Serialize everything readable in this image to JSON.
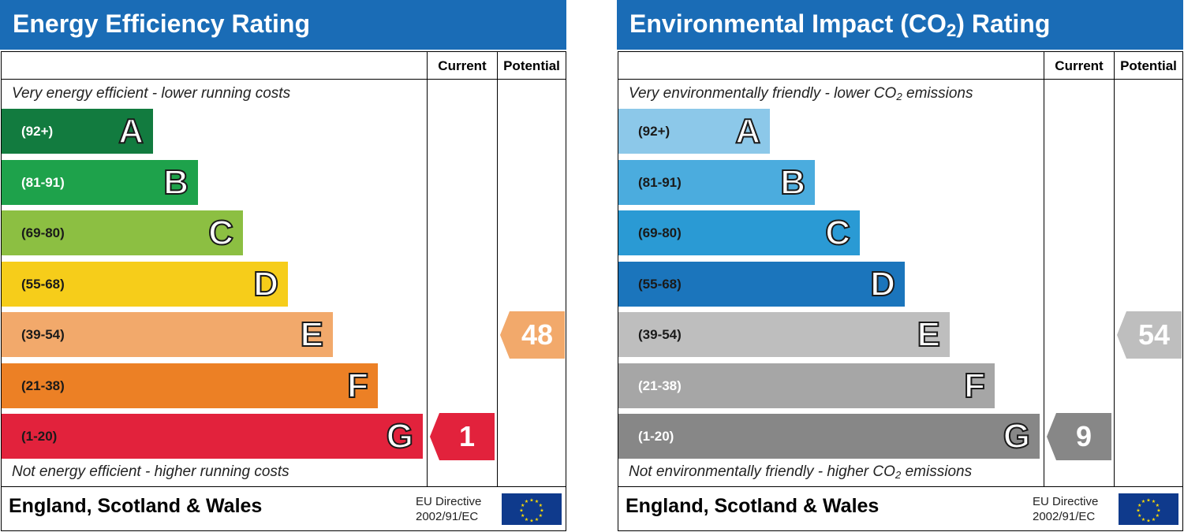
{
  "chart_data": [
    {
      "type": "bar",
      "title": "Energy Efficiency Rating",
      "columns": [
        "Current",
        "Potential"
      ],
      "top_note": "Very energy efficient - lower running costs",
      "bottom_note": "Not energy efficient - higher running costs",
      "bands": [
        {
          "range": "(92+)",
          "letter": "A",
          "color": "#127b3f",
          "text_color": "#ffffff"
        },
        {
          "range": "(81-91)",
          "letter": "B",
          "color": "#1ea24b",
          "text_color": "#ffffff"
        },
        {
          "range": "(69-80)",
          "letter": "C",
          "color": "#8cbf42",
          "text_color": "#1a1a1a"
        },
        {
          "range": "(55-68)",
          "letter": "D",
          "color": "#f6cd1a",
          "text_color": "#1a1a1a"
        },
        {
          "range": "(39-54)",
          "letter": "E",
          "color": "#f2a96b",
          "text_color": "#1a1a1a"
        },
        {
          "range": "(21-38)",
          "letter": "F",
          "color": "#ec8025",
          "text_color": "#1a1a1a"
        },
        {
          "range": "(1-20)",
          "letter": "G",
          "color": "#e2223c",
          "text_color": "#1a1a1a"
        }
      ],
      "current": {
        "value": 1,
        "label": "1",
        "band": "G",
        "color": "#e2223c"
      },
      "potential": {
        "value": 48,
        "label": "48",
        "band": "E",
        "color": "#f2a96b"
      },
      "footer": {
        "region": "England, Scotland & Wales",
        "directive_line1": "EU Directive",
        "directive_line2": "2002/91/EC"
      }
    },
    {
      "type": "bar",
      "title_prefix": "Environmental Impact (CO",
      "title_sub": "2",
      "title_suffix": ") Rating",
      "columns": [
        "Current",
        "Potential"
      ],
      "top_note_prefix": "Very environmentally friendly - lower CO",
      "top_note_sub": "2",
      "top_note_suffix": " emissions",
      "bottom_note_prefix": "Not environmentally friendly - higher CO",
      "bottom_note_sub": "2",
      "bottom_note_suffix": " emissions",
      "bands": [
        {
          "range": "(92+)",
          "letter": "A",
          "color": "#8cc8e9",
          "text_color": "#1a1a1a"
        },
        {
          "range": "(81-91)",
          "letter": "B",
          "color": "#4bacde",
          "text_color": "#1a1a1a"
        },
        {
          "range": "(69-80)",
          "letter": "C",
          "color": "#2a9ad4",
          "text_color": "#1a1a1a"
        },
        {
          "range": "(55-68)",
          "letter": "D",
          "color": "#1b75bc",
          "text_color": "#1a1a1a"
        },
        {
          "range": "(39-54)",
          "letter": "E",
          "color": "#bebebe",
          "text_color": "#1a1a1a"
        },
        {
          "range": "(21-38)",
          "letter": "F",
          "color": "#a6a6a6",
          "text_color": "#ffffff"
        },
        {
          "range": "(1-20)",
          "letter": "G",
          "color": "#878787",
          "text_color": "#ffffff"
        }
      ],
      "current": {
        "value": 9,
        "label": "9",
        "band": "G",
        "color": "#878787"
      },
      "potential": {
        "value": 54,
        "label": "54",
        "band": "E",
        "color": "#bebebe"
      },
      "footer": {
        "region": "England, Scotland & Wales",
        "directive_line1": "EU Directive",
        "directive_line2": "2002/91/EC"
      }
    }
  ],
  "colors": {
    "title_bar": "#1a6cb6",
    "eu_flag_blue": "#0f3a8c",
    "eu_flag_stars": "#ffdd00"
  }
}
